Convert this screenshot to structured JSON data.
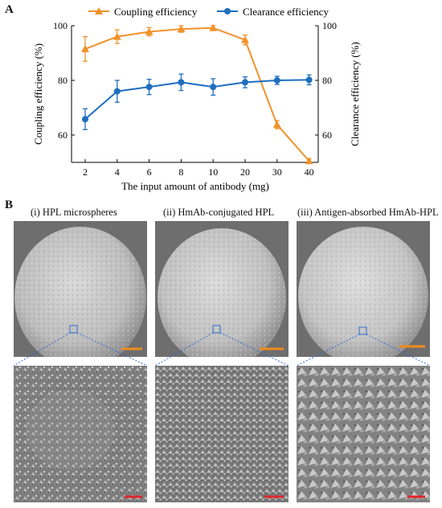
{
  "panel_a": {
    "letter": "A",
    "legend": {
      "coupling": "Coupling efficiency",
      "clearance": "Clearance efficiency"
    },
    "colors": {
      "coupling": "#f0922b",
      "clearance": "#1f6fbf"
    }
  },
  "chart_data": {
    "type": "line",
    "categories": [
      "2",
      "4",
      "6",
      "8",
      "10",
      "20",
      "30",
      "40"
    ],
    "xlabel": "The input amount of antibody (mg)",
    "ylabel_left": "Coupling efficiency (%)",
    "ylabel_right": "Clearance efficiency (%)",
    "yticks_left": [
      "60",
      "80",
      "100"
    ],
    "yticks_right": [
      "60",
      "80",
      "100"
    ],
    "ylim": [
      50,
      100
    ],
    "series": [
      {
        "name": "Coupling efficiency",
        "axis": "left",
        "marker": "triangle",
        "color": "#f0922b",
        "values": [
          91.5,
          96,
          97.8,
          98.8,
          99.2,
          94.8,
          63.8,
          50.5
        ],
        "errors": [
          4.5,
          2.5,
          1.5,
          1.2,
          0.8,
          1.8,
          1.5,
          0.8
        ]
      },
      {
        "name": "Clearance efficiency",
        "axis": "right",
        "marker": "circle",
        "color": "#1f6fbf",
        "values": [
          65.8,
          76,
          77.6,
          79.3,
          77.6,
          79.3,
          80,
          80.2
        ],
        "errors": [
          3.8,
          4.0,
          2.8,
          3.0,
          3.0,
          2.0,
          1.5,
          1.8
        ]
      }
    ]
  },
  "panel_b": {
    "letter": "B",
    "captions": [
      "(i) HPL  microspheres",
      "(ii) HmAb-conjugated HPL",
      "(iii) Antigen-absorbed HmAb-HPL"
    ]
  }
}
